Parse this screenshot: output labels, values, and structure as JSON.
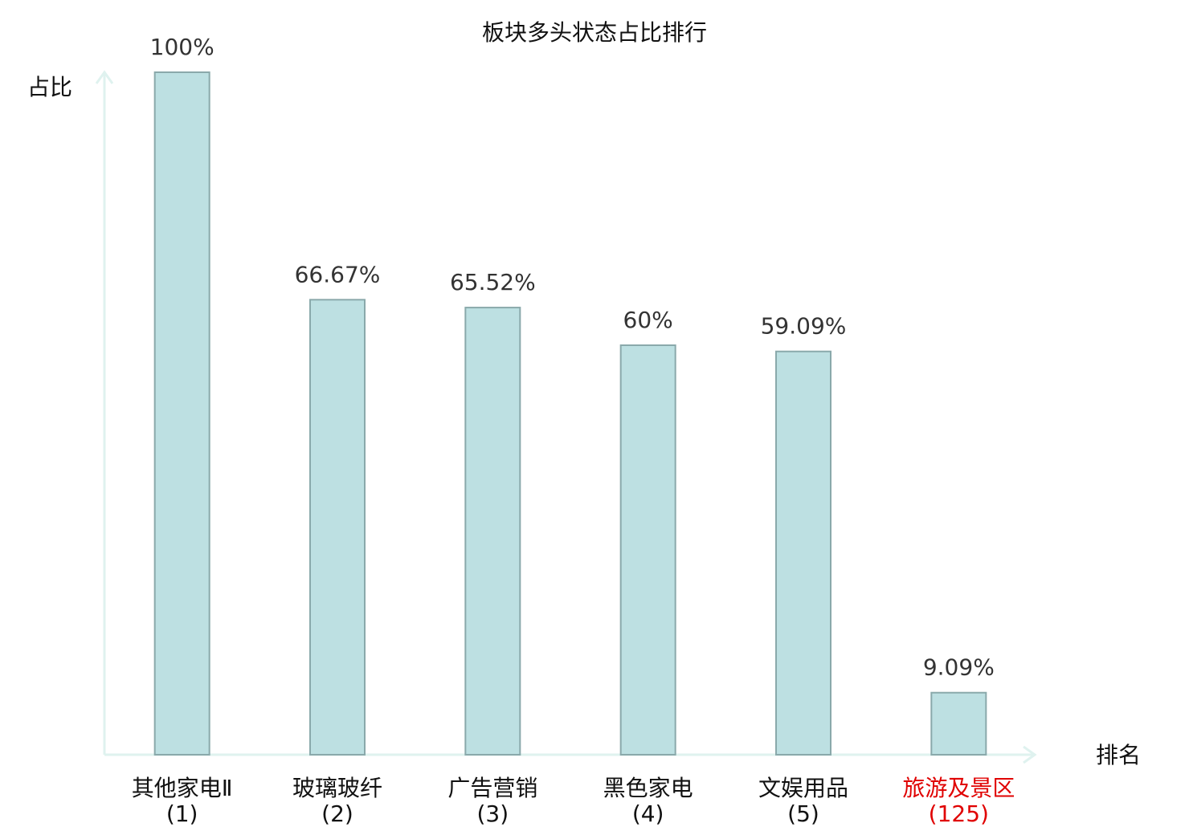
{
  "chart_data": {
    "type": "bar",
    "title": "板块多头状态占比排行",
    "y_label": "占比",
    "x_label": "排名",
    "categories": [
      "其他家电Ⅱ(1)",
      "玻璃玻纤(2)",
      "广告营销(3)",
      "黑色家电(4)",
      "文娱用品(5)",
      "旅游及景区(125)"
    ],
    "category_colors": [
      "#111111",
      "#111111",
      "#111111",
      "#111111",
      "#111111",
      "#e00000"
    ],
    "values": [
      100,
      66.67,
      65.52,
      60,
      59.09,
      9.09
    ],
    "value_labels": [
      "100%",
      "66.67%",
      "65.52%",
      "60%",
      "59.09%",
      "9.09%"
    ],
    "color": "#bde0e2",
    "ylim": [
      0,
      100
    ]
  }
}
